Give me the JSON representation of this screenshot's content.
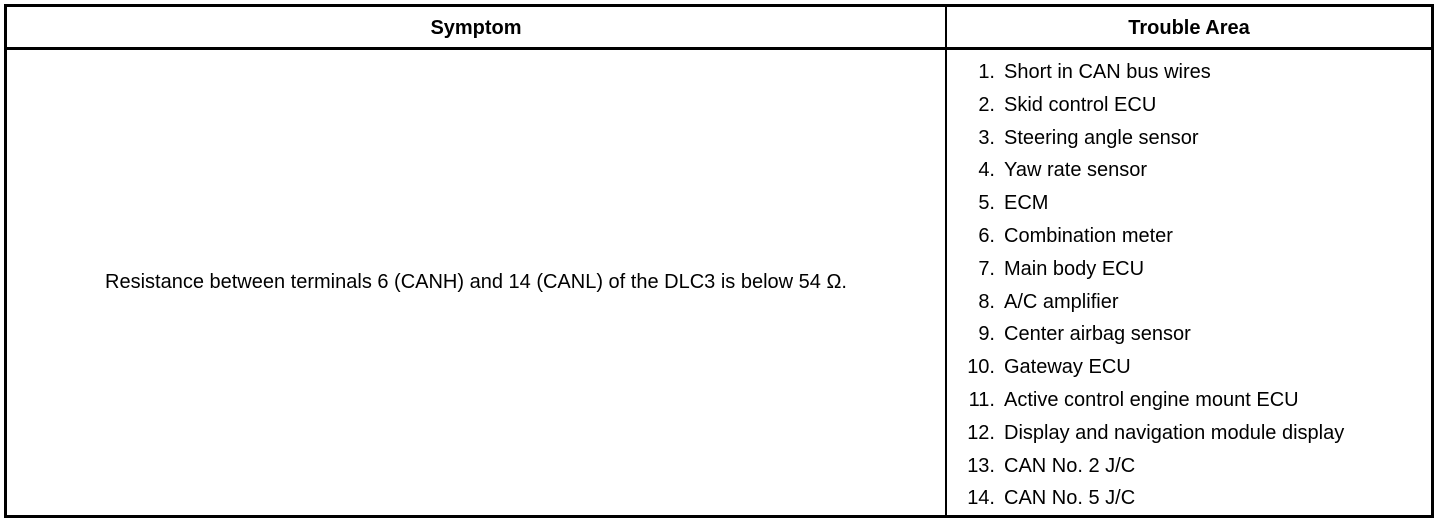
{
  "headers": {
    "symptom": "Symptom",
    "trouble_area": "Trouble Area"
  },
  "symptom": "Resistance between terminals 6 (CANH) and 14 (CANL) of the DLC3 is below 54 Ω.",
  "trouble_areas": [
    {
      "num": "1.",
      "label": "Short in CAN bus wires"
    },
    {
      "num": "2.",
      "label": "Skid control ECU"
    },
    {
      "num": "3.",
      "label": "Steering angle sensor"
    },
    {
      "num": "4.",
      "label": "Yaw rate sensor"
    },
    {
      "num": "5.",
      "label": "ECM"
    },
    {
      "num": "6.",
      "label": "Combination meter"
    },
    {
      "num": "7.",
      "label": "Main body ECU"
    },
    {
      "num": "8.",
      "label": "A/C amplifier"
    },
    {
      "num": "9.",
      "label": "Center airbag sensor"
    },
    {
      "num": "10.",
      "label": "Gateway ECU"
    },
    {
      "num": "11.",
      "label": "Active control engine mount ECU"
    },
    {
      "num": "12.",
      "label": "Display and navigation module display"
    },
    {
      "num": "13.",
      "label": "CAN No. 2 J/C"
    },
    {
      "num": "14.",
      "label": "CAN No. 5 J/C"
    }
  ]
}
